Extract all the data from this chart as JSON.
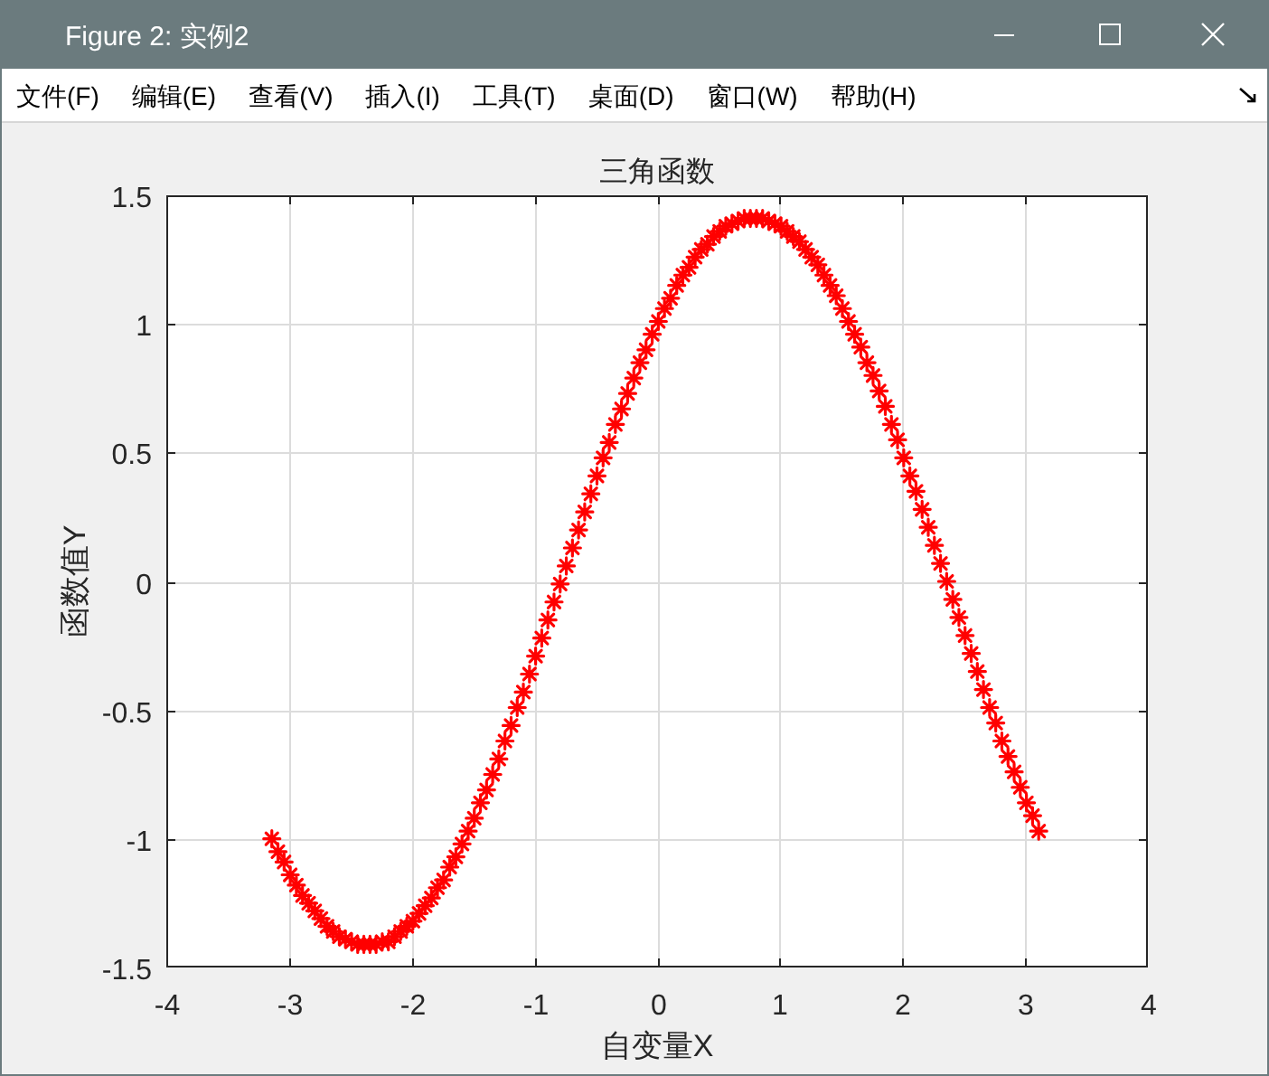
{
  "chart_data": {
    "type": "scatter",
    "title": "三角函数",
    "xlabel": "自变量X",
    "ylabel": "函数值Y",
    "annotations": [
      "Figure 2: 实例2",
      "文件(F)",
      "编辑(E)",
      "查看(V)",
      "插入(I)",
      "工具(T)",
      "桌面(D)",
      "窗口(W)",
      "帮助(H)"
    ],
    "x": [
      -3.14,
      -3.09,
      -3.04,
      -2.99,
      -2.94,
      -2.89,
      -2.84,
      -2.79,
      -2.74,
      -2.69,
      -2.64,
      -2.59,
      -2.54,
      -2.49,
      -2.44,
      -2.39,
      -2.34,
      -2.29,
      -2.24,
      -2.19,
      -2.14,
      -2.09,
      -2.04,
      -1.99,
      -1.94,
      -1.89,
      -1.84,
      -1.79,
      -1.74,
      -1.69,
      -1.64,
      -1.59,
      -1.54,
      -1.49,
      -1.44,
      -1.39,
      -1.34,
      -1.29,
      -1.24,
      -1.19,
      -1.14,
      -1.09,
      -1.04,
      -0.99,
      -0.94,
      -0.89,
      -0.84,
      -0.79,
      -0.74,
      -0.69,
      -0.64,
      -0.59,
      -0.54,
      -0.49,
      -0.44,
      -0.39,
      -0.34,
      -0.29,
      -0.24,
      -0.19,
      -0.14,
      -0.09,
      -0.04,
      0.01,
      0.06,
      0.11,
      0.16,
      0.21,
      0.26,
      0.31,
      0.36,
      0.41,
      0.46,
      0.51,
      0.56,
      0.61,
      0.66,
      0.71,
      0.76,
      0.81,
      0.86,
      0.91,
      0.96,
      1.01,
      1.06,
      1.11,
      1.16,
      1.21,
      1.26,
      1.31,
      1.36,
      1.41,
      1.46,
      1.51,
      1.56,
      1.61,
      1.66,
      1.71,
      1.76,
      1.81,
      1.86,
      1.91,
      1.96,
      2.01,
      2.06,
      2.11,
      2.16,
      2.21,
      2.26,
      2.31,
      2.36,
      2.41,
      2.46,
      2.51,
      2.56,
      2.61,
      2.66,
      2.71,
      2.76,
      2.81,
      2.86,
      2.91,
      2.96,
      3.01,
      3.06,
      3.11
    ],
    "series": [
      {
        "color": "#ff0000",
        "values": [
          -1.0,
          -1.05,
          -1.09,
          -1.14,
          -1.18,
          -1.22,
          -1.25,
          -1.28,
          -1.31,
          -1.34,
          -1.36,
          -1.38,
          -1.39,
          -1.4,
          -1.41,
          -1.41,
          -1.41,
          -1.41,
          -1.4,
          -1.4,
          -1.38,
          -1.36,
          -1.34,
          -1.32,
          -1.29,
          -1.26,
          -1.23,
          -1.19,
          -1.16,
          -1.11,
          -1.07,
          -1.02,
          -0.97,
          -0.92,
          -0.86,
          -0.81,
          -0.75,
          -0.69,
          -0.62,
          -0.56,
          -0.49,
          -0.43,
          -0.36,
          -0.29,
          -0.22,
          -0.15,
          -0.08,
          -0.01,
          0.06,
          0.13,
          0.2,
          0.27,
          0.34,
          0.41,
          0.48,
          0.54,
          0.61,
          0.67,
          0.73,
          0.79,
          0.85,
          0.9,
          0.96,
          1.01,
          1.06,
          1.1,
          1.15,
          1.19,
          1.22,
          1.26,
          1.29,
          1.31,
          1.34,
          1.36,
          1.38,
          1.39,
          1.4,
          1.41,
          1.41,
          1.41,
          1.41,
          1.4,
          1.39,
          1.38,
          1.36,
          1.34,
          1.32,
          1.29,
          1.26,
          1.23,
          1.19,
          1.15,
          1.11,
          1.06,
          1.01,
          0.96,
          0.91,
          0.85,
          0.8,
          0.74,
          0.68,
          0.61,
          0.55,
          0.48,
          0.41,
          0.35,
          0.28,
          0.21,
          0.14,
          0.07,
          0.0,
          -0.07,
          -0.14,
          -0.21,
          -0.28,
          -0.35,
          -0.42,
          -0.49,
          -0.55,
          -0.62,
          -0.68,
          -0.74,
          -0.8,
          -0.86,
          -0.91,
          -0.97
        ]
      }
    ],
    "marker": "cross",
    "xlim": [
      -4,
      4
    ],
    "xticks": [
      -4,
      -3,
      -2,
      -1,
      0,
      1,
      2,
      3,
      4
    ],
    "ylim": [
      -1.5,
      1.5
    ],
    "yticks": [
      -1.5,
      -1,
      -0.5,
      0,
      0.5,
      1,
      1.5
    ],
    "grid": true
  }
}
